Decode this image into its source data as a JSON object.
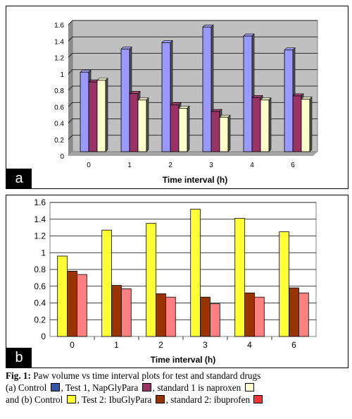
{
  "chart_data": [
    {
      "type": "bar",
      "panel_label": "a",
      "categories": [
        "0",
        "1",
        "2",
        "3",
        "4",
        "6"
      ],
      "series": [
        {
          "values": [
            0.97,
            1.25,
            1.33,
            1.52,
            1.41,
            1.24
          ],
          "color": "#9999ff"
        },
        {
          "values": [
            0.85,
            0.71,
            0.57,
            0.49,
            0.66,
            0.68
          ],
          "color": "#993366"
        },
        {
          "values": [
            0.87,
            0.63,
            0.53,
            0.42,
            0.63,
            0.64
          ],
          "color": "#ffffcc"
        }
      ],
      "xlabel": "Time interval (h)",
      "ylabel": "",
      "ylim": [
        0,
        1.6
      ],
      "yticks": [
        "0",
        "0.2",
        "0.4",
        "0.6",
        "0.8",
        "1",
        "1.2",
        "1.4",
        "1.6"
      ],
      "plot_background": "#c0c0c0",
      "grid": true
    },
    {
      "type": "bar",
      "panel_label": "b",
      "categories": [
        "0",
        "1",
        "2",
        "3",
        "4",
        "6"
      ],
      "series": [
        {
          "values": [
            0.96,
            1.27,
            1.35,
            1.52,
            1.41,
            1.25
          ],
          "color": "#ffff33"
        },
        {
          "values": [
            0.78,
            0.61,
            0.51,
            0.47,
            0.52,
            0.58
          ],
          "color": "#993300"
        },
        {
          "values": [
            0.74,
            0.57,
            0.47,
            0.39,
            0.47,
            0.52
          ],
          "color": "#ff8080"
        }
      ],
      "xlabel": "Time interval (h)",
      "ylabel": "",
      "ylim": [
        0,
        1.6
      ],
      "yticks": [
        "0",
        "0.2",
        "0.4",
        "0.6",
        "0.8",
        "1",
        "1.2",
        "1.4",
        "1.6"
      ],
      "plot_background": "#ffffff",
      "grid": true
    }
  ],
  "caption": {
    "fig_label": "Fig. 1:",
    "line1_rest": "Paw volume vs time interval plots for test and standard drugs",
    "a_prefix": "(a) Control",
    "a_test": ", Test 1, NapGlyPara",
    "a_std": ", standard 1 is naproxen",
    "b_prefix": "and (b) Control",
    "b_test": ", Test 2: IbuGlyPara",
    "b_std": ", standard 2: ibuprofen"
  }
}
